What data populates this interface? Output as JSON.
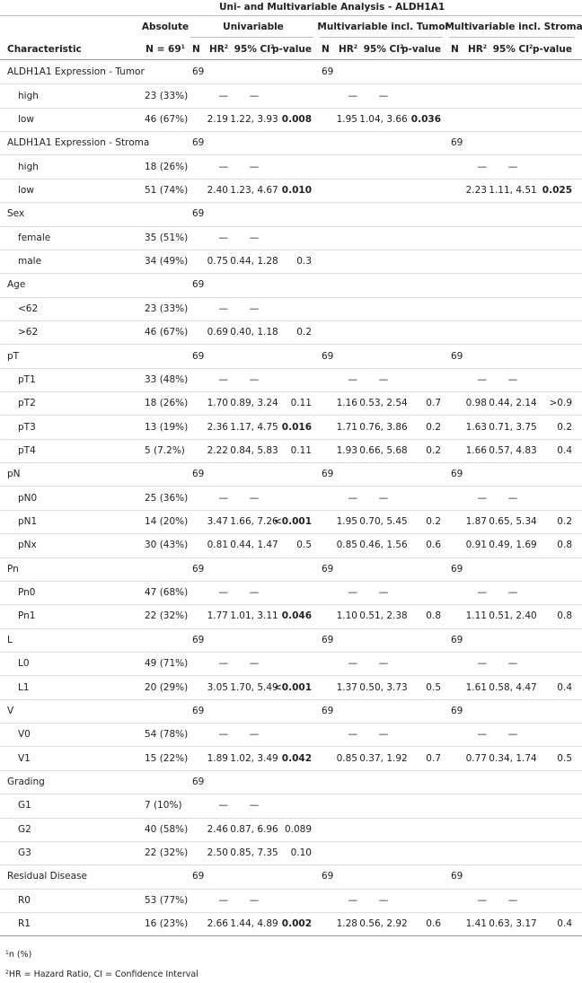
{
  "title": "Uni- and Multivariable Analysis - ALDH1A1",
  "header": {
    "characteristic": "Characteristic",
    "absolute": "Absolute",
    "n_total": "N = 69",
    "n_total_note": "1",
    "spanners": [
      "Univariable",
      "Multivariable incl. Tumor",
      "Multivariable incl. Stroma"
    ],
    "columns": [
      "N",
      "HR",
      "95% CI",
      "p-value"
    ],
    "column_notes": [
      null,
      "2",
      "2",
      null
    ]
  },
  "rows": [
    {
      "sub": false,
      "cells": [
        "ALDH1A1 Expression - Tumor",
        null,
        "69",
        null,
        null,
        null,
        "69",
        null,
        null,
        null,
        null,
        null,
        null,
        null
      ],
      "bold": []
    },
    {
      "sub": true,
      "cells": [
        "high",
        "23 (33%)",
        null,
        "—",
        "—",
        null,
        null,
        "—",
        "—",
        null,
        null,
        null,
        null,
        null
      ],
      "bold": []
    },
    {
      "sub": true,
      "cells": [
        "low",
        "46 (67%)",
        null,
        "2.19",
        "1.22, 3.93",
        "0.008",
        null,
        "1.95",
        "1.04, 3.66",
        "0.036",
        null,
        null,
        null,
        null
      ],
      "bold": [
        5,
        9
      ]
    },
    {
      "sub": false,
      "cells": [
        "ALDH1A1 Expression - Stroma",
        null,
        "69",
        null,
        null,
        null,
        null,
        null,
        null,
        null,
        "69",
        null,
        null,
        null
      ],
      "bold": []
    },
    {
      "sub": true,
      "cells": [
        "high",
        "18 (26%)",
        null,
        "—",
        "—",
        null,
        null,
        null,
        null,
        null,
        null,
        "—",
        "—",
        null
      ],
      "bold": []
    },
    {
      "sub": true,
      "cells": [
        "low",
        "51 (74%)",
        null,
        "2.40",
        "1.23, 4.67",
        "0.010",
        null,
        null,
        null,
        null,
        null,
        "2.23",
        "1.11, 4.51",
        "0.025"
      ],
      "bold": [
        5,
        13
      ]
    },
    {
      "sub": false,
      "cells": [
        "Sex",
        null,
        "69",
        null,
        null,
        null,
        null,
        null,
        null,
        null,
        null,
        null,
        null,
        null
      ],
      "bold": []
    },
    {
      "sub": true,
      "cells": [
        "female",
        "35 (51%)",
        null,
        "—",
        "—",
        null,
        null,
        null,
        null,
        null,
        null,
        null,
        null,
        null
      ],
      "bold": []
    },
    {
      "sub": true,
      "cells": [
        "male",
        "34 (49%)",
        null,
        "0.75",
        "0.44, 1.28",
        "0.3",
        null,
        null,
        null,
        null,
        null,
        null,
        null,
        null
      ],
      "bold": []
    },
    {
      "sub": false,
      "cells": [
        "Age",
        null,
        "69",
        null,
        null,
        null,
        null,
        null,
        null,
        null,
        null,
        null,
        null,
        null
      ],
      "bold": []
    },
    {
      "sub": true,
      "cells": [
        "<62",
        "23 (33%)",
        null,
        "—",
        "—",
        null,
        null,
        null,
        null,
        null,
        null,
        null,
        null,
        null
      ],
      "bold": []
    },
    {
      "sub": true,
      "cells": [
        ">62",
        "46 (67%)",
        null,
        "0.69",
        "0.40, 1.18",
        "0.2",
        null,
        null,
        null,
        null,
        null,
        null,
        null,
        null
      ],
      "bold": []
    },
    {
      "sub": false,
      "cells": [
        "pT",
        null,
        "69",
        null,
        null,
        null,
        "69",
        null,
        null,
        null,
        "69",
        null,
        null,
        null
      ],
      "bold": []
    },
    {
      "sub": true,
      "cells": [
        "pT1",
        "33 (48%)",
        null,
        "—",
        "—",
        null,
        null,
        "—",
        "—",
        null,
        null,
        "—",
        "—",
        null
      ],
      "bold": []
    },
    {
      "sub": true,
      "cells": [
        "pT2",
        "18 (26%)",
        null,
        "1.70",
        "0.89, 3.24",
        "0.11",
        null,
        "1.16",
        "0.53, 2.54",
        "0.7",
        null,
        "0.98",
        "0.44, 2.14",
        ">0.9"
      ],
      "bold": []
    },
    {
      "sub": true,
      "cells": [
        "pT3",
        "13 (19%)",
        null,
        "2.36",
        "1.17, 4.75",
        "0.016",
        null,
        "1.71",
        "0.76, 3.86",
        "0.2",
        null,
        "1.63",
        "0.71, 3.75",
        "0.2"
      ],
      "bold": [
        5
      ]
    },
    {
      "sub": true,
      "cells": [
        "pT4",
        "5 (7.2%)",
        null,
        "2.22",
        "0.84, 5.83",
        "0.11",
        null,
        "1.93",
        "0.66, 5.68",
        "0.2",
        null,
        "1.66",
        "0.57, 4.83",
        "0.4"
      ],
      "bold": []
    },
    {
      "sub": false,
      "cells": [
        "pN",
        null,
        "69",
        null,
        null,
        null,
        "69",
        null,
        null,
        null,
        "69",
        null,
        null,
        null
      ],
      "bold": []
    },
    {
      "sub": true,
      "cells": [
        "pN0",
        "25 (36%)",
        null,
        "—",
        "—",
        null,
        null,
        "—",
        "—",
        null,
        null,
        "—",
        "—",
        null
      ],
      "bold": []
    },
    {
      "sub": true,
      "cells": [
        "pN1",
        "14 (20%)",
        null,
        "3.47",
        "1.66, 7.26",
        "<0.001",
        null,
        "1.95",
        "0.70, 5.45",
        "0.2",
        null,
        "1.87",
        "0.65, 5.34",
        "0.2"
      ],
      "bold": [
        5
      ]
    },
    {
      "sub": true,
      "cells": [
        "pNx",
        "30 (43%)",
        null,
        "0.81",
        "0.44, 1.47",
        "0.5",
        null,
        "0.85",
        "0.46, 1.56",
        "0.6",
        null,
        "0.91",
        "0.49, 1.69",
        "0.8"
      ],
      "bold": []
    },
    {
      "sub": false,
      "cells": [
        "Pn",
        null,
        "69",
        null,
        null,
        null,
        "69",
        null,
        null,
        null,
        "69",
        null,
        null,
        null
      ],
      "bold": []
    },
    {
      "sub": true,
      "cells": [
        "Pn0",
        "47 (68%)",
        null,
        "—",
        "—",
        null,
        null,
        "—",
        "—",
        null,
        null,
        "—",
        "—",
        null
      ],
      "bold": []
    },
    {
      "sub": true,
      "cells": [
        "Pn1",
        "22 (32%)",
        null,
        "1.77",
        "1.01, 3.11",
        "0.046",
        null,
        "1.10",
        "0.51, 2.38",
        "0.8",
        null,
        "1.11",
        "0.51, 2.40",
        "0.8"
      ],
      "bold": [
        5
      ]
    },
    {
      "sub": false,
      "cells": [
        "L",
        null,
        "69",
        null,
        null,
        null,
        "69",
        null,
        null,
        null,
        "69",
        null,
        null,
        null
      ],
      "bold": []
    },
    {
      "sub": true,
      "cells": [
        "L0",
        "49 (71%)",
        null,
        "—",
        "—",
        null,
        null,
        "—",
        "—",
        null,
        null,
        "—",
        "—",
        null
      ],
      "bold": []
    },
    {
      "sub": true,
      "cells": [
        "L1",
        "20 (29%)",
        null,
        "3.05",
        "1.70, 5.49",
        "<0.001",
        null,
        "1.37",
        "0.50, 3.73",
        "0.5",
        null,
        "1.61",
        "0.58, 4.47",
        "0.4"
      ],
      "bold": [
        5
      ]
    },
    {
      "sub": false,
      "cells": [
        "V",
        null,
        "69",
        null,
        null,
        null,
        "69",
        null,
        null,
        null,
        "69",
        null,
        null,
        null
      ],
      "bold": []
    },
    {
      "sub": true,
      "cells": [
        "V0",
        "54 (78%)",
        null,
        "—",
        "—",
        null,
        null,
        "—",
        "—",
        null,
        null,
        "—",
        "—",
        null
      ],
      "bold": []
    },
    {
      "sub": true,
      "cells": [
        "V1",
        "15 (22%)",
        null,
        "1.89",
        "1.02, 3.49",
        "0.042",
        null,
        "0.85",
        "0.37, 1.92",
        "0.7",
        null,
        "0.77",
        "0.34, 1.74",
        "0.5"
      ],
      "bold": [
        5
      ]
    },
    {
      "sub": false,
      "cells": [
        "Grading",
        null,
        "69",
        null,
        null,
        null,
        null,
        null,
        null,
        null,
        null,
        null,
        null,
        null
      ],
      "bold": []
    },
    {
      "sub": true,
      "cells": [
        "G1",
        "7 (10%)",
        null,
        "—",
        "—",
        null,
        null,
        null,
        null,
        null,
        null,
        null,
        null,
        null
      ],
      "bold": []
    },
    {
      "sub": true,
      "cells": [
        "G2",
        "40 (58%)",
        null,
        "2.46",
        "0.87, 6.96",
        "0.089",
        null,
        null,
        null,
        null,
        null,
        null,
        null,
        null
      ],
      "bold": []
    },
    {
      "sub": true,
      "cells": [
        "G3",
        "22 (32%)",
        null,
        "2.50",
        "0.85, 7.35",
        "0.10",
        null,
        null,
        null,
        null,
        null,
        null,
        null,
        null
      ],
      "bold": []
    },
    {
      "sub": false,
      "cells": [
        "Residual Disease",
        null,
        "69",
        null,
        null,
        null,
        "69",
        null,
        null,
        null,
        "69",
        null,
        null,
        null
      ],
      "bold": []
    },
    {
      "sub": true,
      "cells": [
        "R0",
        "53 (77%)",
        null,
        "—",
        "—",
        null,
        null,
        "—",
        "—",
        null,
        null,
        "—",
        "—",
        null
      ],
      "bold": []
    },
    {
      "sub": true,
      "cells": [
        "R1",
        "16 (23%)",
        null,
        "2.66",
        "1.44, 4.89",
        "0.002",
        null,
        "1.28",
        "0.56, 2.92",
        "0.6",
        null,
        "1.41",
        "0.63, 3.17",
        "0.4"
      ],
      "bold": [
        5
      ]
    }
  ],
  "footnotes": [
    {
      "mark": "1",
      "text": "n (%)"
    },
    {
      "mark": "2",
      "text": "HR = Hazard Ratio, CI = Confidence Interval"
    }
  ]
}
